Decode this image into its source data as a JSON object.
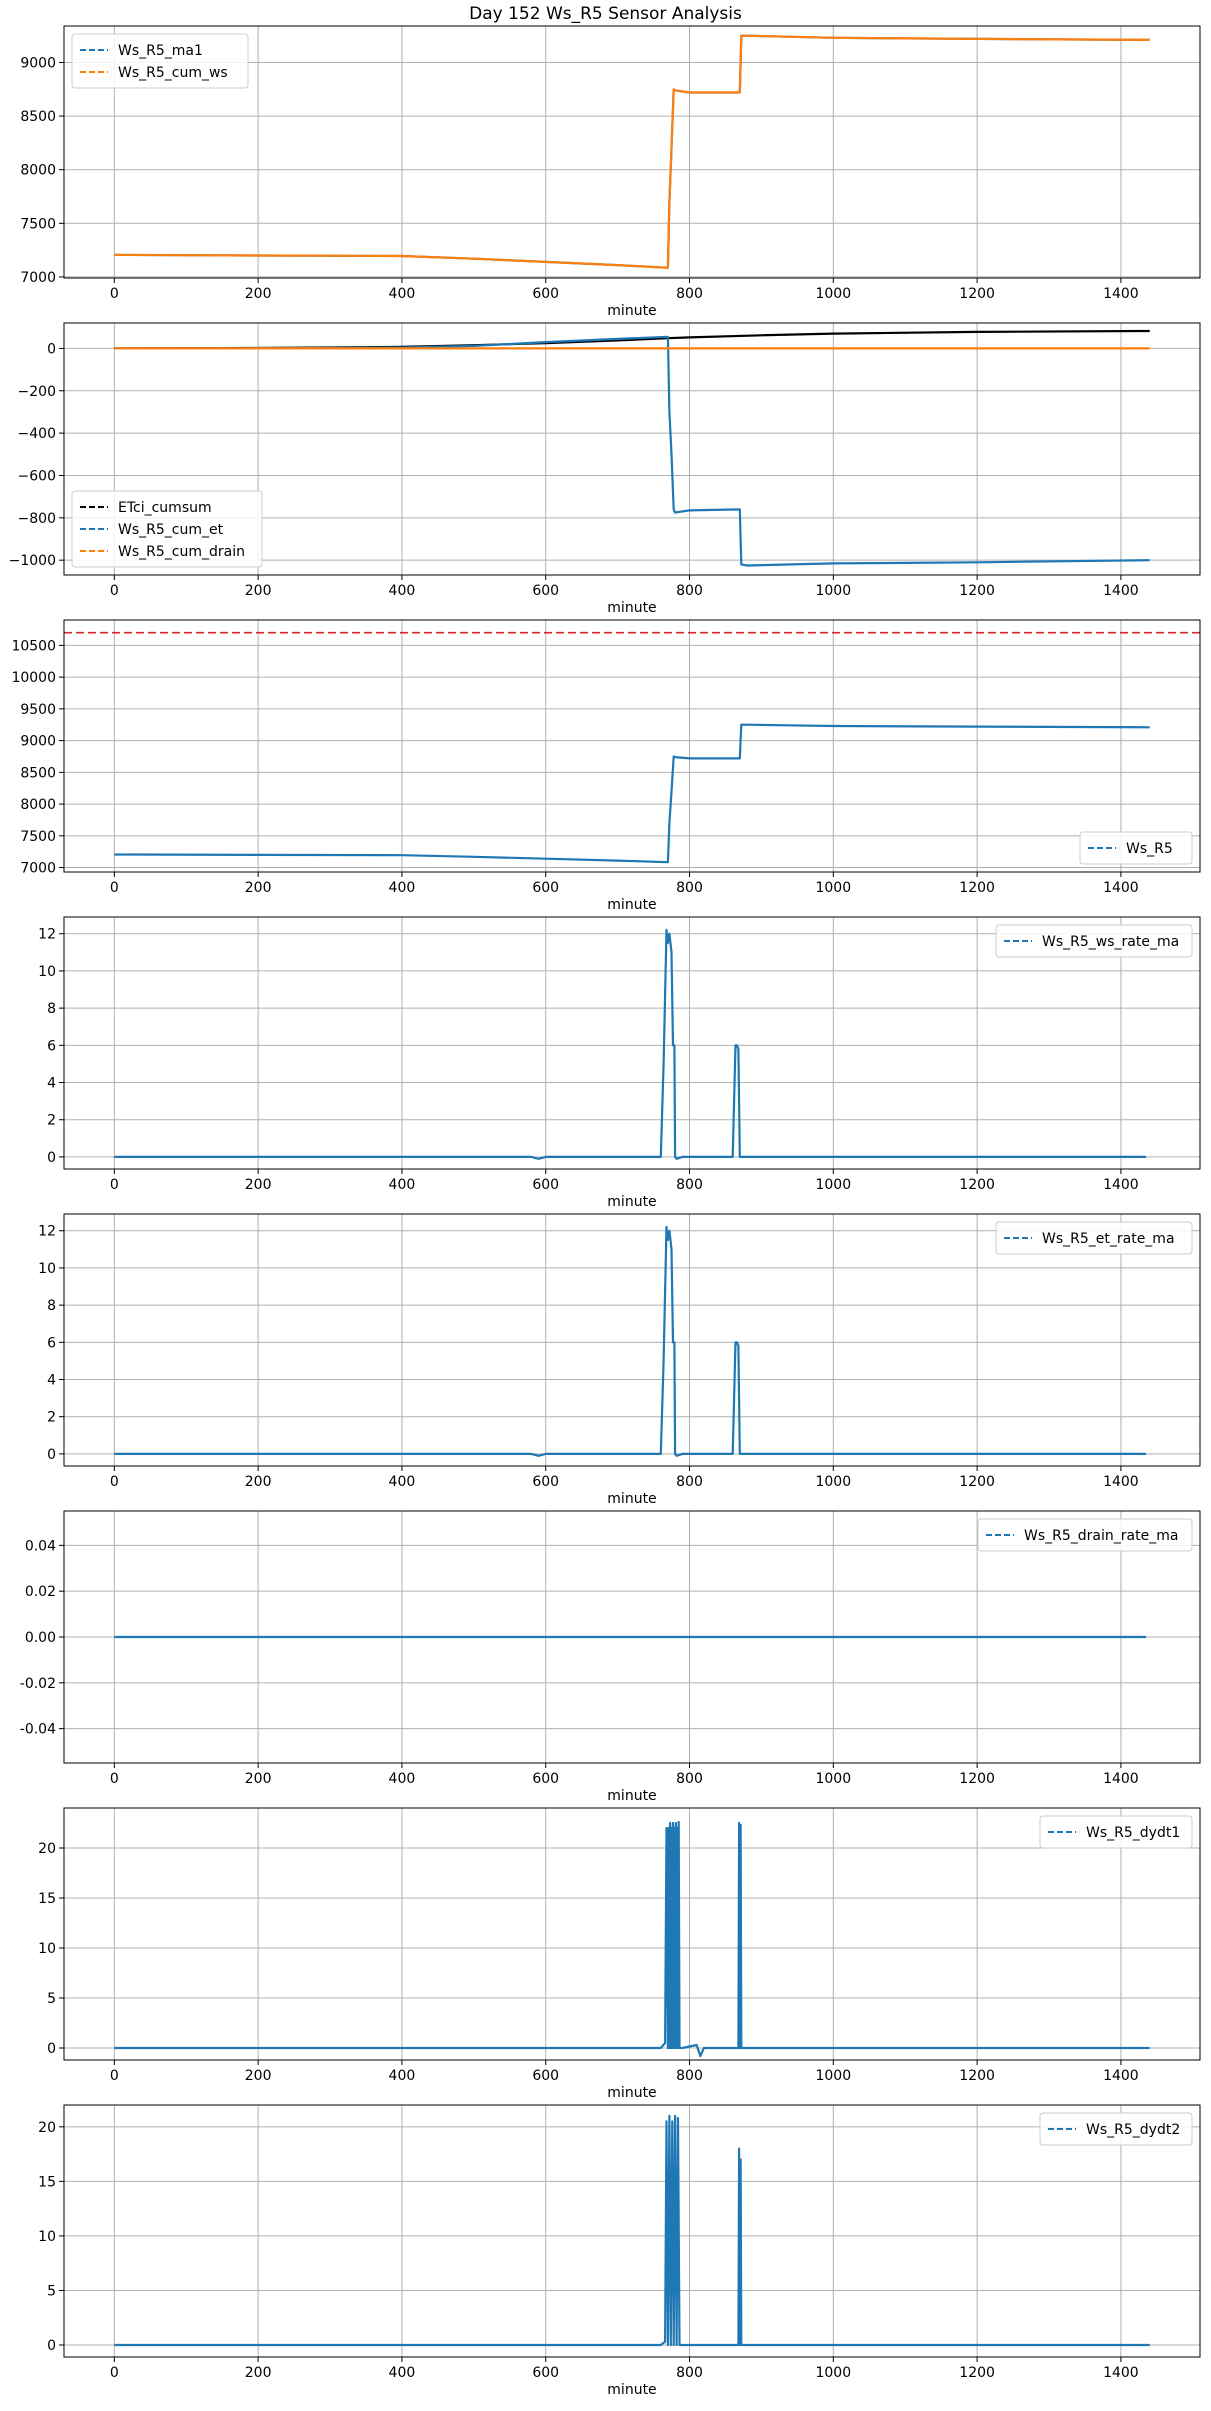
{
  "figure": {
    "title": "Day 152 Ws_R5 Sensor Analysis"
  },
  "chart_data": [
    {
      "type": "line",
      "xlabel": "minute",
      "xlim": [
        -70,
        1510
      ],
      "ylim": [
        6990,
        9340
      ],
      "xticks": [
        0,
        200,
        400,
        600,
        800,
        1000,
        1200,
        1400
      ],
      "yticks": [
        7000,
        7500,
        8000,
        8500,
        9000
      ],
      "grid": true,
      "legend": "upper left",
      "series": [
        {
          "name": "Ws_R5_ma1",
          "color": "#1f77b4",
          "style": "dashed",
          "x": [
            0,
            200,
            400,
            500,
            600,
            700,
            770,
            772,
            775,
            778,
            780,
            800,
            870,
            872,
            880,
            1000,
            1200,
            1440
          ],
          "y": [
            7205,
            7200,
            7195,
            7170,
            7140,
            7110,
            7085,
            7700,
            8200,
            8750,
            8740,
            8720,
            8720,
            9250,
            9250,
            9230,
            9220,
            9210
          ]
        },
        {
          "name": "Ws_R5_cum_ws",
          "color": "#ff7f0e",
          "style": "dashed",
          "x": [
            0,
            200,
            400,
            500,
            600,
            700,
            770,
            772,
            775,
            778,
            780,
            800,
            870,
            872,
            880,
            1000,
            1200,
            1440
          ],
          "y": [
            7205,
            7200,
            7195,
            7170,
            7140,
            7110,
            7085,
            7700,
            8200,
            8750,
            8740,
            8720,
            8720,
            9250,
            9250,
            9230,
            9220,
            9210
          ]
        }
      ]
    },
    {
      "type": "line",
      "xlabel": "minute",
      "xlim": [
        -70,
        1510
      ],
      "ylim": [
        -1070,
        120
      ],
      "xticks": [
        0,
        200,
        400,
        600,
        800,
        1000,
        1200,
        1400
      ],
      "yticks": [
        0,
        -200,
        -400,
        -600,
        -800,
        -1000
      ],
      "grid": true,
      "legend": "lower left",
      "series": [
        {
          "name": "ETci_cumsum",
          "color": "#000000",
          "style": "dashed",
          "x": [
            0,
            200,
            400,
            500,
            600,
            700,
            770,
            800,
            900,
            1000,
            1200,
            1440
          ],
          "y": [
            0,
            2,
            7,
            15,
            25,
            38,
            48,
            52,
            62,
            70,
            78,
            82
          ]
        },
        {
          "name": "Ws_R5_cum_et",
          "color": "#1f77b4",
          "style": "dashed",
          "x": [
            0,
            200,
            400,
            500,
            600,
            700,
            770,
            772,
            775,
            778,
            780,
            800,
            870,
            872,
            880,
            1000,
            1200,
            1440
          ],
          "y": [
            0,
            1,
            4,
            12,
            30,
            45,
            55,
            -300,
            -500,
            -760,
            -775,
            -765,
            -760,
            -1020,
            -1025,
            -1015,
            -1010,
            -1000
          ]
        },
        {
          "name": "Ws_R5_cum_drain",
          "color": "#ff7f0e",
          "style": "dashed",
          "x": [
            0,
            1440
          ],
          "y": [
            0,
            0
          ]
        }
      ]
    },
    {
      "type": "line",
      "xlabel": "minute",
      "xlim": [
        -70,
        1510
      ],
      "ylim": [
        6930,
        10900
      ],
      "xticks": [
        0,
        200,
        400,
        600,
        800,
        1000,
        1200,
        1400
      ],
      "yticks": [
        7000,
        7500,
        8000,
        8500,
        9000,
        9500,
        10000,
        10500
      ],
      "grid": true,
      "legend": "lower right",
      "hline": {
        "y": 10700,
        "color": "#d62728",
        "style": "dashed"
      },
      "series": [
        {
          "name": "Ws_R5",
          "color": "#1f77b4",
          "style": "dashed",
          "x": [
            0,
            200,
            400,
            500,
            600,
            700,
            770,
            772,
            775,
            778,
            780,
            800,
            870,
            872,
            880,
            1000,
            1200,
            1440
          ],
          "y": [
            7205,
            7200,
            7195,
            7170,
            7140,
            7110,
            7085,
            7700,
            8200,
            8750,
            8740,
            8720,
            8720,
            9250,
            9250,
            9230,
            9220,
            9210
          ]
        }
      ]
    },
    {
      "type": "line",
      "xlabel": "minute",
      "xlim": [
        -70,
        1510
      ],
      "ylim": [
        -0.65,
        12.9
      ],
      "xticks": [
        0,
        200,
        400,
        600,
        800,
        1000,
        1200,
        1400
      ],
      "yticks": [
        0,
        2,
        4,
        6,
        8,
        10,
        12
      ],
      "grid": true,
      "legend": "upper right",
      "series": [
        {
          "name": "Ws_R5_ws_rate_ma",
          "color": "#1f77b4",
          "style": "dashed",
          "x": [
            0,
            580,
            590,
            600,
            760,
            764,
            768,
            770,
            772,
            775,
            777,
            779,
            780,
            782,
            790,
            860,
            862,
            864,
            866,
            868,
            870,
            880,
            1000,
            1200,
            1435
          ],
          "y": [
            0,
            0,
            -0.1,
            0,
            0,
            5,
            12.2,
            11.5,
            12,
            11,
            6,
            6,
            0,
            -0.1,
            0,
            0,
            3,
            6,
            6,
            5.8,
            0,
            0,
            0,
            0,
            0
          ]
        }
      ]
    },
    {
      "type": "line",
      "xlabel": "minute",
      "xlim": [
        -70,
        1510
      ],
      "ylim": [
        -0.65,
        12.9
      ],
      "xticks": [
        0,
        200,
        400,
        600,
        800,
        1000,
        1200,
        1400
      ],
      "yticks": [
        0,
        2,
        4,
        6,
        8,
        10,
        12
      ],
      "grid": true,
      "legend": "upper right",
      "series": [
        {
          "name": "Ws_R5_et_rate_ma",
          "color": "#1f77b4",
          "style": "dashed",
          "x": [
            0,
            580,
            590,
            600,
            760,
            764,
            768,
            770,
            772,
            775,
            777,
            779,
            780,
            782,
            790,
            860,
            862,
            864,
            866,
            868,
            870,
            880,
            1000,
            1200,
            1435
          ],
          "y": [
            0,
            0,
            -0.1,
            0,
            0,
            5,
            12.2,
            11.5,
            12,
            11,
            6,
            6,
            0,
            -0.1,
            0,
            0,
            3,
            6,
            6,
            5.8,
            0,
            0,
            0,
            0,
            0
          ]
        }
      ]
    },
    {
      "type": "line",
      "xlabel": "minute",
      "xlim": [
        -70,
        1510
      ],
      "ylim": [
        -0.055,
        0.055
      ],
      "xticks": [
        0,
        200,
        400,
        600,
        800,
        1000,
        1200,
        1400
      ],
      "yticks": [
        -0.04,
        -0.02,
        0.0,
        0.02,
        0.04
      ],
      "ytick_labels": [
        "-0.04",
        "-0.02",
        "0.00",
        "0.02",
        "0.04"
      ],
      "grid": true,
      "legend": "upper right",
      "series": [
        {
          "name": "Ws_R5_drain_rate_ma",
          "color": "#1f77b4",
          "style": "dashed",
          "x": [
            0,
            1435
          ],
          "y": [
            0,
            0
          ]
        }
      ]
    },
    {
      "type": "line",
      "xlabel": "minute",
      "xlim": [
        -70,
        1510
      ],
      "ylim": [
        -1.2,
        24
      ],
      "xticks": [
        0,
        200,
        400,
        600,
        800,
        1000,
        1200,
        1400
      ],
      "yticks": [
        0,
        5,
        10,
        15,
        20
      ],
      "grid": true,
      "legend": "upper right",
      "series": [
        {
          "name": "Ws_R5_dydt1",
          "color": "#1f77b4",
          "style": "dashed",
          "x": [
            0,
            760,
            766,
            768,
            770,
            771,
            772,
            773,
            774,
            775,
            776,
            777,
            778,
            779,
            780,
            781,
            782,
            783,
            784,
            785,
            786,
            790,
            810,
            815,
            820,
            868,
            869,
            870,
            871,
            872,
            880,
            1000,
            1200,
            1440
          ],
          "y": [
            0,
            0,
            0.5,
            22,
            0,
            22,
            0,
            22.5,
            0,
            22,
            0,
            22.5,
            0,
            22,
            0,
            22.5,
            0,
            22,
            0,
            22.6,
            0,
            0,
            0.3,
            -0.8,
            0,
            0,
            22.5,
            0,
            22.3,
            0,
            0,
            0,
            0,
            0
          ]
        }
      ]
    },
    {
      "type": "line",
      "xlabel": "minute",
      "xlim": [
        -70,
        1510
      ],
      "ylim": [
        -1.1,
        22
      ],
      "xticks": [
        0,
        200,
        400,
        600,
        800,
        1000,
        1200,
        1400
      ],
      "yticks": [
        0,
        5,
        10,
        15,
        20
      ],
      "grid": true,
      "legend": "upper right",
      "series": [
        {
          "name": "Ws_R5_dydt2",
          "color": "#1f77b4",
          "style": "dashed",
          "x": [
            0,
            760,
            766,
            768,
            770,
            772,
            774,
            776,
            778,
            780,
            782,
            784,
            786,
            790,
            868,
            869,
            870,
            871,
            872,
            880,
            1000,
            1200,
            1440
          ],
          "y": [
            0,
            0,
            0.3,
            20.5,
            0,
            21,
            0,
            20.5,
            0,
            21,
            0,
            20.8,
            0,
            0,
            0,
            18,
            0,
            17,
            0,
            0,
            0,
            0,
            0
          ]
        }
      ]
    }
  ]
}
